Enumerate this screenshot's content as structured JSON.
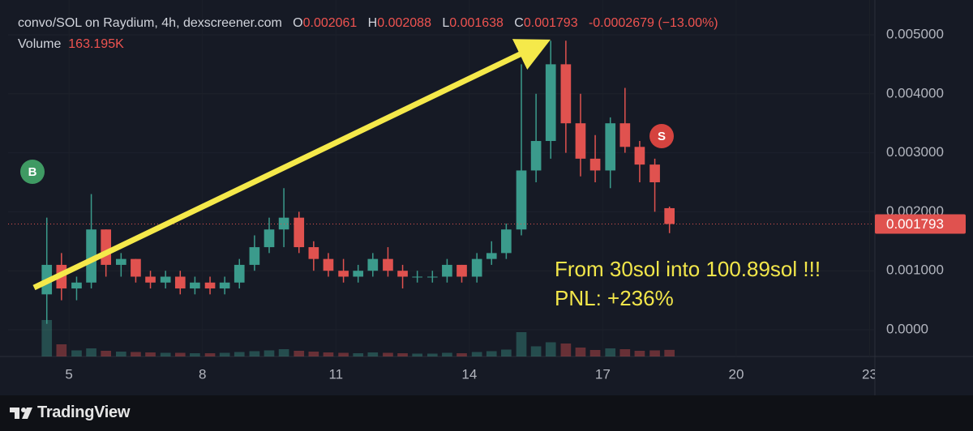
{
  "chart_data": {
    "type": "candlestick",
    "title": "convo/SOL on Raydium, 4h, dexscreener.com",
    "ohlc_labels": [
      "O",
      "H",
      "L",
      "C"
    ],
    "change": -0.0002679,
    "change_pct_label": "(−13.00%)",
    "volume_label": "Volume",
    "last_volume_label": "163.195K",
    "markers": [
      "B",
      "S"
    ],
    "annotations": [
      "From 30sol into 100.89sol !!!",
      "PNL: +236%"
    ],
    "brand": "TradingView",
    "xlim": [
      3.63,
      23.1
    ],
    "xticks": [
      5,
      8,
      11,
      14,
      17,
      20,
      23
    ],
    "ylim": [
      -0.000453,
      0.00559
    ],
    "yticks": [
      {
        "value": 0,
        "label": "0.0000"
      },
      {
        "value": 0.001,
        "label": "0.001000"
      },
      {
        "value": 0.002,
        "label": "0.002000"
      },
      {
        "value": 0.003,
        "label": "0.003000"
      },
      {
        "value": 0.004,
        "label": "0.004000"
      },
      {
        "value": 0.005,
        "label": "0.005000"
      }
    ],
    "up_color": "#3b9b8c",
    "down_color": "#e0524f",
    "candles": {
      "x": [
        4.5,
        4.83,
        5.17,
        5.5,
        5.83,
        6.17,
        6.5,
        6.83,
        7.17,
        7.5,
        7.83,
        8.17,
        8.5,
        8.83,
        9.17,
        9.5,
        9.83,
        10.17,
        10.5,
        10.83,
        11.17,
        11.5,
        11.83,
        12.17,
        12.5,
        12.83,
        13.17,
        13.5,
        13.83,
        14.17,
        14.5,
        14.83,
        15.17,
        15.5,
        15.83,
        16.17,
        16.5,
        16.83,
        17.17,
        17.5,
        17.83,
        18.17,
        18.5
      ],
      "open": [
        0.0006,
        0.0011,
        0.0007,
        0.0008,
        0.0017,
        0.0011,
        0.0012,
        0.0009,
        0.0008,
        0.0009,
        0.0007,
        0.0008,
        0.0007,
        0.0008,
        0.0011,
        0.0014,
        0.0017,
        0.0019,
        0.0014,
        0.0012,
        0.001,
        0.0009,
        0.001,
        0.0012,
        0.001,
        0.0009,
        0.0009,
        0.0009,
        0.0011,
        0.0009,
        0.0012,
        0.0013,
        0.0017,
        0.0027,
        0.0032,
        0.0045,
        0.0035,
        0.0029,
        0.0027,
        0.0035,
        0.0031,
        0.0028,
        0.002061
      ],
      "high": [
        0.0019,
        0.0013,
        0.0009,
        0.0023,
        0.0017,
        0.0013,
        0.0012,
        0.001,
        0.001,
        0.001,
        0.0009,
        0.0009,
        0.0009,
        0.0012,
        0.0016,
        0.0019,
        0.0024,
        0.002,
        0.0015,
        0.0013,
        0.0012,
        0.0011,
        0.0013,
        0.0014,
        0.0011,
        0.001,
        0.001,
        0.0012,
        0.0011,
        0.0013,
        0.0015,
        0.0018,
        0.0045,
        0.004,
        0.0049,
        0.0049,
        0.004,
        0.0033,
        0.0036,
        0.0041,
        0.0032,
        0.0029,
        0.002088
      ],
      "low": [
        0.0001,
        0.0005,
        0.0005,
        0.0007,
        0.0009,
        0.0009,
        0.0008,
        0.0007,
        0.0007,
        0.0006,
        0.0006,
        0.0006,
        0.0006,
        0.0007,
        0.001,
        0.0013,
        0.0014,
        0.0013,
        0.001,
        0.0009,
        0.0008,
        0.0008,
        0.0009,
        0.0009,
        0.0007,
        0.0008,
        0.0008,
        0.0008,
        0.0008,
        0.0008,
        0.0011,
        0.0012,
        0.0016,
        0.0025,
        0.0029,
        0.003,
        0.0026,
        0.0025,
        0.0024,
        0.003,
        0.0025,
        0.002,
        0.001638
      ],
      "close": [
        0.0011,
        0.0007,
        0.0008,
        0.0017,
        0.0011,
        0.0012,
        0.0009,
        0.0008,
        0.0009,
        0.0007,
        0.0008,
        0.0007,
        0.0008,
        0.0011,
        0.0014,
        0.0017,
        0.0019,
        0.0014,
        0.0012,
        0.001,
        0.0009,
        0.001,
        0.0012,
        0.001,
        0.0009,
        0.0009,
        0.0009,
        0.0011,
        0.0009,
        0.0012,
        0.0013,
        0.0017,
        0.0027,
        0.0032,
        0.0045,
        0.0035,
        0.0029,
        0.0027,
        0.0035,
        0.0031,
        0.0028,
        0.0025,
        0.001793
      ],
      "volume": [
        900,
        300,
        150,
        200,
        140,
        120,
        110,
        100,
        90,
        90,
        80,
        80,
        90,
        110,
        130,
        150,
        180,
        140,
        120,
        100,
        90,
        80,
        100,
        90,
        80,
        70,
        70,
        90,
        80,
        110,
        130,
        170,
        600,
        250,
        350,
        320,
        220,
        160,
        200,
        180,
        140,
        150,
        163.195
      ]
    }
  }
}
